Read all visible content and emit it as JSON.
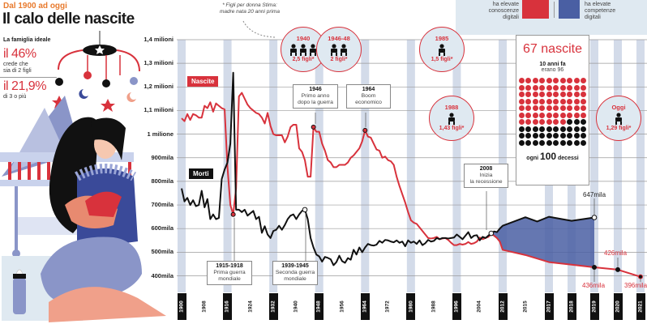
{
  "header": {
    "kicker": "Dal 1900 ad oggi",
    "title": "Il calo delle nascite",
    "note": "* Figli per donna Stima: madre nata 20 anni prima"
  },
  "ideal_family": {
    "label": "La famiglia ideale",
    "stat1": {
      "value": "il 46%",
      "text1": "crede che",
      "text2": "sia di 2 figli"
    },
    "stat2": {
      "value": "il 21,9%",
      "text1": "di 3 o più"
    }
  },
  "legend": {
    "red_text": [
      "ha elevate",
      "conoscenze",
      "digitali"
    ],
    "blue_text": [
      "ha elevate",
      "competenze",
      "digitali"
    ],
    "red": "#d8323c",
    "blue": "#4a5fa3"
  },
  "series_tags": {
    "births": "Nascite",
    "deaths": "Morti"
  },
  "annotations": [
    {
      "year": "1915-1918",
      "l1": "Prima guerra",
      "l2": "mondiale"
    },
    {
      "year": "1939-1945",
      "l1": "Seconda guerra",
      "l2": "mondiale"
    },
    {
      "year": "1946",
      "l1": "Primo anno",
      "l2": "dopo la guerra"
    },
    {
      "year": "1964",
      "l1": "Boom",
      "l2": "economico"
    },
    {
      "year": "2008",
      "l1": "Inizia",
      "l2": "la recessione"
    }
  ],
  "fertility": [
    {
      "year": "1940",
      "children": "2,5 figli*",
      "icons": 3
    },
    {
      "year": "1946-48",
      "children": "2 figli*",
      "icons": 2
    },
    {
      "year": "1985",
      "children": "1,5 figli*",
      "icons": 1
    },
    {
      "year": "1988",
      "children": "1,43 figli*",
      "icons": 1
    },
    {
      "year": "Oggi",
      "children": "1,29 figli*",
      "icons": 1
    }
  ],
  "infobox": {
    "headline": "67 nascite",
    "ten_years": "10 anni fa",
    "was": "erano 96",
    "births_per_100": 67,
    "total": 100,
    "footer_pre": "ogni",
    "footer_num": "100",
    "footer_post": "decessi"
  },
  "value_labels": {
    "deaths_2019": "647mila",
    "births_2019": "436mila",
    "births_2020": "426mila",
    "births_2021": "396mila"
  },
  "chart_data": {
    "type": "line",
    "title": "Il calo delle nascite",
    "ylabel": "",
    "xlabel": "",
    "ylim": [
      380,
      1400
    ],
    "y_ticks": [
      {
        "v": 1400,
        "label": "1,4 milioni"
      },
      {
        "v": 1300,
        "label": "1,3 milioni"
      },
      {
        "v": 1200,
        "label": "1,2 milioni"
      },
      {
        "v": 1100,
        "label": "1,1 milioni"
      },
      {
        "v": 1000,
        "label": "1 milione"
      },
      {
        "v": 900,
        "label": "900mila"
      },
      {
        "v": 800,
        "label": "800mila"
      },
      {
        "v": 700,
        "label": "700mila"
      },
      {
        "v": 600,
        "label": "600mila"
      },
      {
        "v": 500,
        "label": "500mila"
      },
      {
        "v": 400,
        "label": "400mila"
      }
    ],
    "x_ticks": [
      {
        "y": 1900,
        "hl": true
      },
      {
        "y": 1908
      },
      {
        "y": 1916,
        "hl": true
      },
      {
        "y": 1924
      },
      {
        "y": 1932,
        "hl": true
      },
      {
        "y": 1940
      },
      {
        "y": 1948,
        "hl": true
      },
      {
        "y": 1956
      },
      {
        "y": 1964,
        "hl": true
      },
      {
        "y": 1972
      },
      {
        "y": 1980,
        "hl": true
      },
      {
        "y": 1988
      },
      {
        "y": 1996,
        "hl": true
      },
      {
        "y": 2004
      },
      {
        "y": 2012,
        "hl": true
      },
      {
        "y": 2015
      },
      {
        "y": 2017,
        "hl": true
      },
      {
        "y": 2018,
        "hl": true
      },
      {
        "y": 2019,
        "hl": true
      },
      {
        "y": 2020,
        "hl": true
      },
      {
        "y": 2021,
        "hl": true
      }
    ],
    "units": "thousands",
    "series": [
      {
        "name": "Nascite",
        "color": "#d8323c",
        "points": [
          [
            1900,
            1067
          ],
          [
            1901,
            1055
          ],
          [
            1902,
            1085
          ],
          [
            1903,
            1060
          ],
          [
            1904,
            1085
          ],
          [
            1905,
            1080
          ],
          [
            1906,
            1070
          ],
          [
            1907,
            1070
          ],
          [
            1908,
            1120
          ],
          [
            1909,
            1110
          ],
          [
            1910,
            1135
          ],
          [
            1911,
            1095
          ],
          [
            1912,
            1130
          ],
          [
            1913,
            1120
          ],
          [
            1914,
            1110
          ],
          [
            1915,
            1105
          ],
          [
            1916,
            860
          ],
          [
            1917,
            700
          ],
          [
            1918,
            660
          ],
          [
            1919,
            770
          ],
          [
            1920,
            1160
          ],
          [
            1921,
            1175
          ],
          [
            1922,
            1150
          ],
          [
            1923,
            1125
          ],
          [
            1924,
            1110
          ],
          [
            1925,
            1100
          ],
          [
            1926,
            1090
          ],
          [
            1927,
            1085
          ],
          [
            1928,
            1070
          ],
          [
            1929,
            1045
          ],
          [
            1930,
            1090
          ],
          [
            1931,
            1035
          ],
          [
            1932,
            1000
          ],
          [
            1933,
            995
          ],
          [
            1934,
            995
          ],
          [
            1935,
            995
          ],
          [
            1936,
            965
          ],
          [
            1937,
            990
          ],
          [
            1938,
            1030
          ],
          [
            1939,
            1040
          ],
          [
            1940,
            1040
          ],
          [
            1941,
            940
          ],
          [
            1942,
            925
          ],
          [
            1943,
            890
          ],
          [
            1944,
            820
          ],
          [
            1945,
            820
          ],
          [
            1946,
            1030
          ],
          [
            1947,
            1010
          ],
          [
            1948,
            1010
          ],
          [
            1949,
            960
          ],
          [
            1950,
            930
          ],
          [
            1951,
            890
          ],
          [
            1952,
            880
          ],
          [
            1953,
            860
          ],
          [
            1954,
            860
          ],
          [
            1955,
            870
          ],
          [
            1956,
            870
          ],
          [
            1957,
            870
          ],
          [
            1958,
            880
          ],
          [
            1959,
            900
          ],
          [
            1960,
            910
          ],
          [
            1961,
            925
          ],
          [
            1962,
            940
          ],
          [
            1963,
            970
          ],
          [
            1964,
            1016
          ],
          [
            1965,
            990
          ],
          [
            1966,
            985
          ],
          [
            1967,
            960
          ],
          [
            1968,
            935
          ],
          [
            1969,
            930
          ],
          [
            1970,
            900
          ],
          [
            1971,
            905
          ],
          [
            1972,
            890
          ],
          [
            1973,
            885
          ],
          [
            1974,
            870
          ],
          [
            1975,
            820
          ],
          [
            1976,
            780
          ],
          [
            1977,
            745
          ],
          [
            1978,
            710
          ],
          [
            1979,
            670
          ],
          [
            1980,
            635
          ],
          [
            1981,
            625
          ],
          [
            1982,
            620
          ],
          [
            1983,
            605
          ],
          [
            1984,
            590
          ],
          [
            1985,
            575
          ],
          [
            1986,
            560
          ],
          [
            1987,
            558
          ],
          [
            1988,
            560
          ],
          [
            1989,
            565
          ],
          [
            1990,
            555
          ],
          [
            1991,
            558
          ],
          [
            1992,
            560
          ],
          [
            1993,
            552
          ],
          [
            1994,
            540
          ],
          [
            1995,
            530
          ],
          [
            1996,
            530
          ],
          [
            1997,
            535
          ],
          [
            1998,
            532
          ],
          [
            1999,
            535
          ],
          [
            2000,
            543
          ],
          [
            2001,
            535
          ],
          [
            2002,
            538
          ],
          [
            2003,
            545
          ],
          [
            2004,
            562
          ],
          [
            2005,
            555
          ],
          [
            2006,
            560
          ],
          [
            2007,
            565
          ],
          [
            2008,
            577
          ],
          [
            2009,
            570
          ],
          [
            2010,
            560
          ],
          [
            2011,
            545
          ],
          [
            2012,
            510
          ],
          [
            2015,
            488
          ],
          [
            2017,
            458
          ],
          [
            2018,
            447
          ],
          [
            2019,
            436
          ],
          [
            2020,
            426
          ],
          [
            2021,
            396
          ]
        ]
      },
      {
        "name": "Morti",
        "color": "#111111",
        "points": [
          [
            1900,
            770
          ],
          [
            1901,
            715
          ],
          [
            1902,
            730
          ],
          [
            1903,
            700
          ],
          [
            1904,
            720
          ],
          [
            1905,
            695
          ],
          [
            1906,
            700
          ],
          [
            1907,
            760
          ],
          [
            1908,
            690
          ],
          [
            1909,
            725
          ],
          [
            1910,
            640
          ],
          [
            1911,
            660
          ],
          [
            1912,
            640
          ],
          [
            1913,
            645
          ],
          [
            1914,
            810
          ],
          [
            1915,
            850
          ],
          [
            1916,
            880
          ],
          [
            1917,
            960
          ],
          [
            1918,
            1260
          ],
          [
            1919,
            680
          ],
          [
            1920,
            680
          ],
          [
            1921,
            670
          ],
          [
            1922,
            680
          ],
          [
            1923,
            655
          ],
          [
            1924,
            665
          ],
          [
            1925,
            675
          ],
          [
            1926,
            640
          ],
          [
            1927,
            650
          ],
          [
            1928,
            582
          ],
          [
            1929,
            610
          ],
          [
            1930,
            575
          ],
          [
            1931,
            560
          ],
          [
            1932,
            590
          ],
          [
            1933,
            595
          ],
          [
            1934,
            612
          ],
          [
            1935,
            595
          ],
          [
            1936,
            615
          ],
          [
            1937,
            640
          ],
          [
            1938,
            655
          ],
          [
            1939,
            660
          ],
          [
            1940,
            640
          ],
          [
            1941,
            660
          ],
          [
            1942,
            675
          ],
          [
            1943,
            680
          ],
          [
            1944,
            640
          ],
          [
            1945,
            560
          ],
          [
            1946,
            520
          ],
          [
            1947,
            490
          ],
          [
            1948,
            482
          ],
          [
            1949,
            460
          ],
          [
            1950,
            480
          ],
          [
            1951,
            476
          ],
          [
            1952,
            470
          ],
          [
            1953,
            445
          ],
          [
            1954,
            458
          ],
          [
            1955,
            485
          ],
          [
            1956,
            462
          ],
          [
            1957,
            455
          ],
          [
            1958,
            475
          ],
          [
            1959,
            468
          ],
          [
            1960,
            510
          ],
          [
            1961,
            490
          ],
          [
            1962,
            520
          ],
          [
            1963,
            500
          ],
          [
            1964,
            520
          ],
          [
            1965,
            535
          ],
          [
            1966,
            530
          ],
          [
            1967,
            528
          ],
          [
            1968,
            532
          ],
          [
            1969,
            548
          ],
          [
            1970,
            540
          ],
          [
            1971,
            552
          ],
          [
            1972,
            550
          ],
          [
            1973,
            545
          ],
          [
            1974,
            542
          ],
          [
            1975,
            550
          ],
          [
            1976,
            540
          ],
          [
            1977,
            545
          ],
          [
            1978,
            525
          ],
          [
            1979,
            550
          ],
          [
            1980,
            540
          ],
          [
            1981,
            545
          ],
          [
            1982,
            535
          ],
          [
            1983,
            550
          ],
          [
            1984,
            530
          ],
          [
            1985,
            538
          ],
          [
            1986,
            552
          ],
          [
            1987,
            545
          ],
          [
            1988,
            548
          ],
          [
            1989,
            560
          ],
          [
            1990,
            555
          ],
          [
            1991,
            560
          ],
          [
            1992,
            560
          ],
          [
            1993,
            558
          ],
          [
            1994,
            560
          ],
          [
            1995,
            562
          ],
          [
            1996,
            575
          ],
          [
            1997,
            565
          ],
          [
            1998,
            555
          ],
          [
            1999,
            570
          ],
          [
            2000,
            585
          ],
          [
            2001,
            560
          ],
          [
            2002,
            570
          ],
          [
            2003,
            572
          ],
          [
            2004,
            550
          ],
          [
            2005,
            565
          ],
          [
            2006,
            560
          ],
          [
            2007,
            570
          ],
          [
            2008,
            580
          ],
          [
            2009,
            588
          ],
          [
            2010,
            585
          ],
          [
            2011,
            600
          ],
          [
            2012,
            612
          ],
          [
            2015,
            648
          ],
          [
            2016,
            630
          ],
          [
            2017,
            650
          ],
          [
            2018,
            633
          ],
          [
            2019,
            647
          ]
        ]
      }
    ],
    "gap_fill": {
      "from": 2008,
      "to": 2019,
      "color": "#4a5fa3"
    },
    "legend": "inline-tags"
  }
}
